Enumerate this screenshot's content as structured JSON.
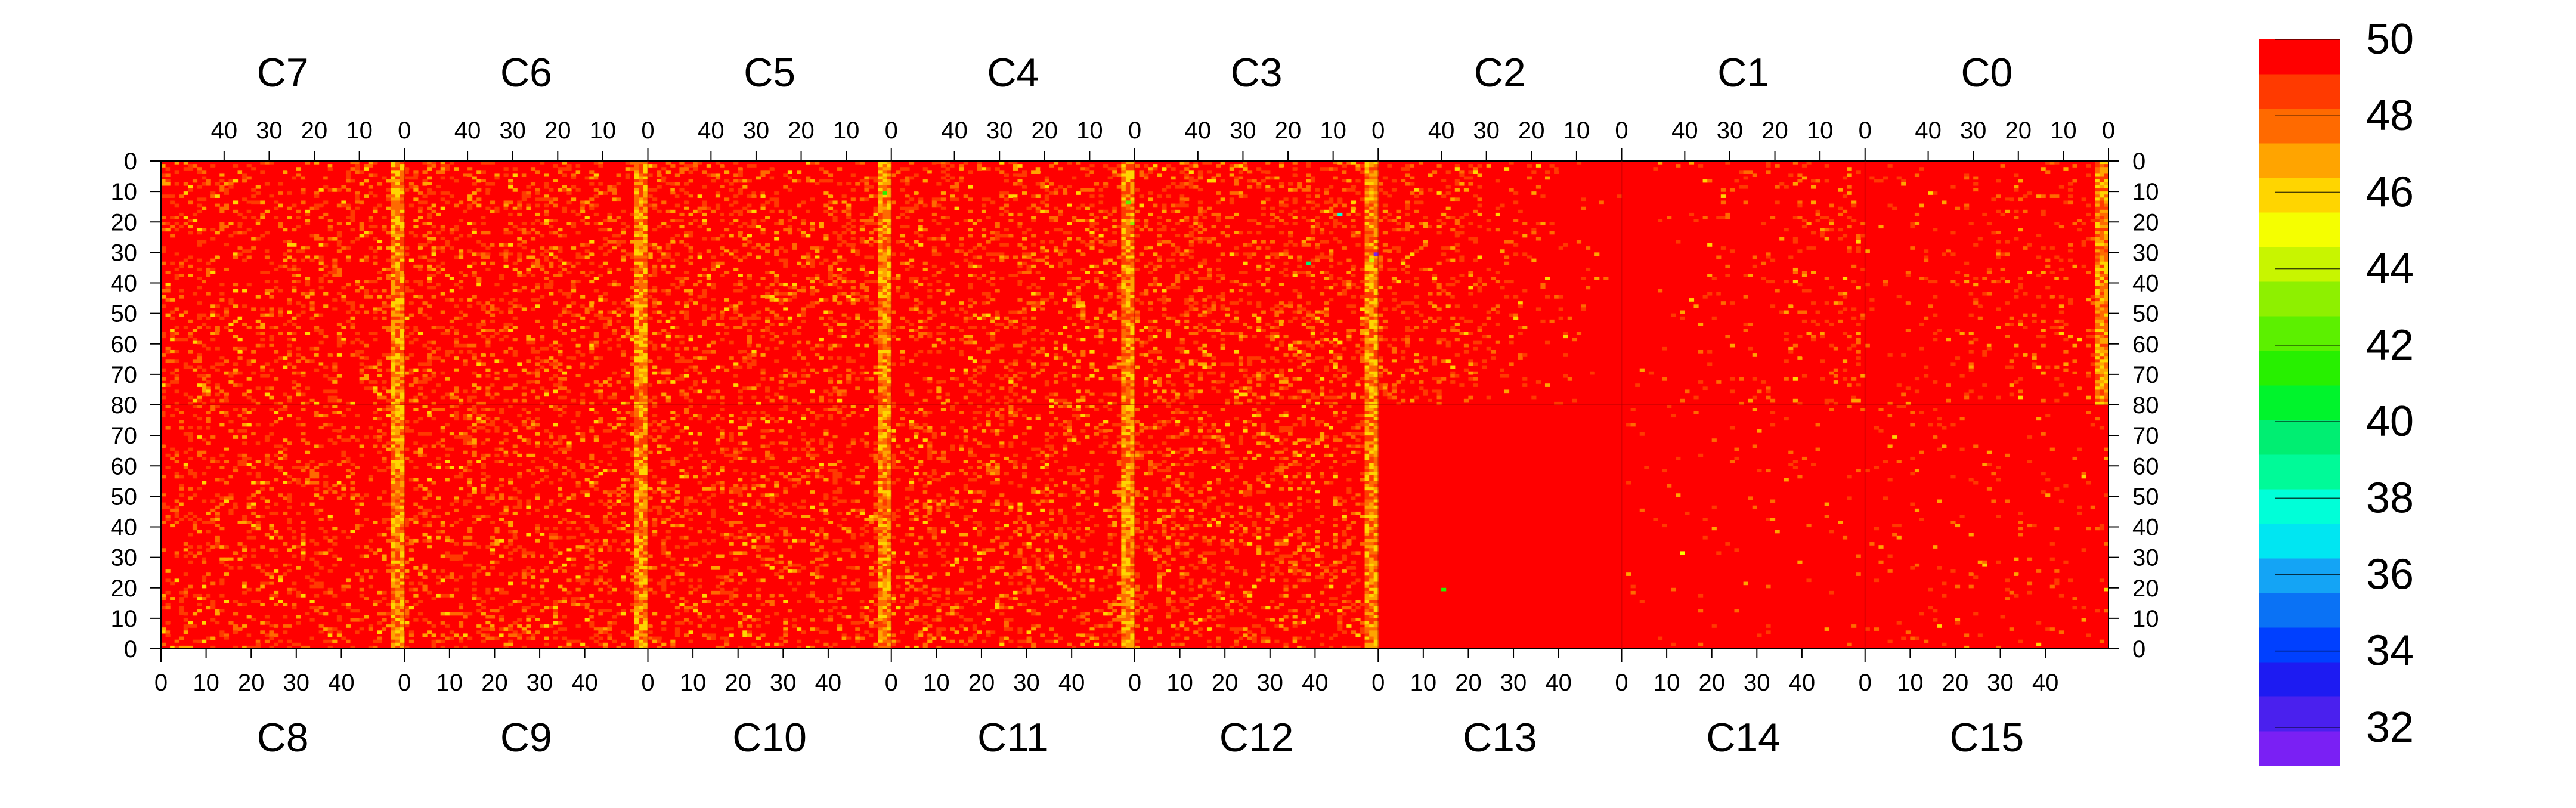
{
  "chart_data": {
    "type": "heatmap",
    "title": "",
    "xlabel": "",
    "ylabel": "",
    "top_panels": [
      "C7",
      "C6",
      "C5",
      "C4",
      "C3",
      "C2",
      "C1",
      "C0"
    ],
    "bottom_panels": [
      "C8",
      "C9",
      "C10",
      "C11",
      "C12",
      "C13",
      "C14",
      "C15"
    ],
    "columns_per_panel": 54,
    "rows_per_half": 80,
    "x_tick_values": [
      0,
      10,
      20,
      30,
      40
    ],
    "top_x_axis": "descending, 0 at right edge of each panel",
    "bottom_x_axis": "ascending, 0 at left edge of each panel",
    "y_tick_values_top_half": [
      0,
      10,
      20,
      30,
      40,
      50,
      60,
      70,
      80
    ],
    "y_tick_values_bottom_half": [
      70,
      60,
      50,
      40,
      30,
      20,
      10,
      0
    ],
    "y_axis": "0 at top, 80 at center, back to 0 at bottom; labels on both sides",
    "value_range": [
      31,
      50
    ],
    "colorbar_ticks": [
      50,
      48,
      46,
      44,
      42,
      40,
      38,
      36,
      34,
      32
    ],
    "colorbar_levels": [
      "#7a20f4",
      "#4a20ee",
      "#1d1bf2",
      "#0040ff",
      "#0a72f5",
      "#14a4f5",
      "#00e6f2",
      "#00ffd8",
      "#00fa98",
      "#00ee72",
      "#00f42c",
      "#27f000",
      "#5cf000",
      "#8ef000",
      "#c8f500",
      "#f5ff00",
      "#ffd500",
      "#ffa400",
      "#ff6a00",
      "#ff3a00",
      "#ff0000"
    ],
    "dominant_value": 50,
    "low_value_stripes": [
      {
        "panels": "C7/C8",
        "position": "right edge (column 0 of C6/C9 boundary)",
        "typical_value": 47.5
      },
      {
        "panels": "C6/C9",
        "position": "right edge",
        "typical_value": 48.5
      },
      {
        "panels": "C5/C10",
        "position": "right edge",
        "typical_value": 46.5
      },
      {
        "panels": "C4/C11",
        "position": "right edge",
        "typical_value": 47.5
      },
      {
        "panels": "C3/C12",
        "position": "right edge",
        "typical_value": 46.5
      },
      {
        "panels": "C0",
        "position": "right edge, top half only",
        "typical_value": 47.5
      }
    ],
    "uniform_region": {
      "panels": [
        "C13",
        "C14",
        "C15",
        "C1",
        "C0 (bottom)"
      ],
      "value": 50
    },
    "grid": false,
    "legend": "colorbar right"
  }
}
